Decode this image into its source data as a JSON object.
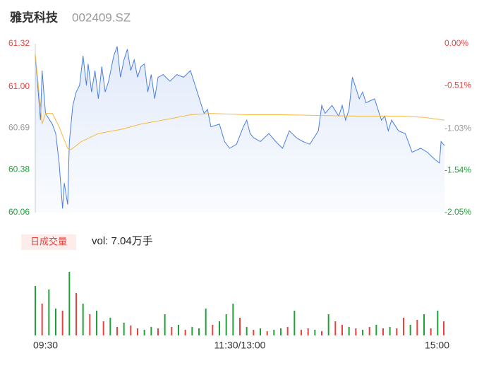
{
  "header": {
    "name": "雅克科技",
    "code": "002409.SZ"
  },
  "chart_data": [
    {
      "type": "line",
      "xlim": [
        0,
        240
      ],
      "ylim": [
        60.06,
        61.32
      ],
      "yticks": [
        61.32,
        {
          "value": 61,
          "label": "61.00"
        },
        60.69,
        60.38,
        60.06
      ],
      "y2lim": [
        -2.05,
        0
      ],
      "y2ticks": [
        {
          "value": 0,
          "label": "0.00%"
        },
        {
          "value": -0.51,
          "label": "-0.51%"
        },
        {
          "value": -1.03,
          "label": "-1.03%"
        },
        {
          "value": -1.54,
          "label": "-1.54%"
        },
        {
          "value": -2.05,
          "label": "-2.05%"
        }
      ],
      "up_color": "#e8413e",
      "flat_color": "#999999",
      "down_color": "#1fa339",
      "series": [
        {
          "color": "#4a7fe0",
          "x": [
            0,
            3,
            4,
            6,
            10,
            12,
            14,
            16,
            17,
            19,
            20,
            22,
            24,
            26,
            28,
            30,
            31,
            33,
            35,
            37,
            39,
            41,
            43,
            46,
            48,
            50,
            52,
            54,
            56,
            58,
            60,
            62,
            64,
            66,
            68,
            70,
            72,
            75,
            79,
            83,
            87,
            91,
            95,
            97,
            99,
            101,
            103,
            108,
            111,
            114,
            118,
            122,
            124,
            126,
            128,
            132,
            137,
            141,
            145,
            149,
            153,
            157,
            161,
            166,
            168,
            170,
            174,
            178,
            180,
            182,
            184,
            186,
            190,
            192,
            194,
            199,
            203,
            205,
            207,
            209,
            213,
            217,
            221,
            226,
            230,
            234,
            237,
            238,
            240
          ],
          "values": [
            61.24,
            60.75,
            61.12,
            60.8,
            60.72,
            60.65,
            60.43,
            60.09,
            60.28,
            60.12,
            60.59,
            60.86,
            60.96,
            61.01,
            61.23,
            61.01,
            61.17,
            60.96,
            61.12,
            60.91,
            61.15,
            60.96,
            61.04,
            61.23,
            61.3,
            61.07,
            61.2,
            61.28,
            61.12,
            61.2,
            61.07,
            61.15,
            61.17,
            60.96,
            61.09,
            60.91,
            61.07,
            61.09,
            61.04,
            61.09,
            61.07,
            61.12,
            60.96,
            60.88,
            60.8,
            60.83,
            60.7,
            60.72,
            60.59,
            60.54,
            60.57,
            60.7,
            60.75,
            60.65,
            60.62,
            60.59,
            60.65,
            60.59,
            60.54,
            60.67,
            60.62,
            60.59,
            60.57,
            60.67,
            60.86,
            60.8,
            60.86,
            60.78,
            60.86,
            60.75,
            60.83,
            61.07,
            60.91,
            60.96,
            60.88,
            60.91,
            60.75,
            60.78,
            60.67,
            60.75,
            60.67,
            60.65,
            60.51,
            60.54,
            60.51,
            60.46,
            60.43,
            60.59,
            60.56
          ]
        },
        {
          "color": "#f5b942",
          "x": [
            0,
            4,
            6,
            10,
            14,
            19,
            21,
            27,
            37,
            50,
            62,
            79,
            91,
            103,
            124,
            145,
            186,
            215,
            228,
            240
          ],
          "values": [
            61.24,
            60.72,
            60.8,
            60.8,
            60.7,
            60.54,
            60.53,
            60.59,
            60.65,
            60.68,
            60.72,
            60.76,
            60.79,
            60.8,
            60.79,
            60.79,
            60.78,
            60.78,
            60.77,
            60.75
          ]
        }
      ]
    },
    {
      "type": "bar",
      "legend_label": "日成交量",
      "volume_text": "vol: 7.04万手",
      "xlim": [
        0,
        240
      ],
      "xticks": [
        {
          "value": 0,
          "label": "09:30"
        },
        {
          "value": 120,
          "label": "11:30/13:00"
        },
        {
          "value": 240,
          "label": "15:00"
        }
      ],
      "ylim": [
        0,
        100
      ],
      "x": [
        0,
        4,
        8,
        12,
        16,
        20,
        24,
        28,
        32,
        36,
        40,
        44,
        48,
        52,
        56,
        60,
        64,
        68,
        72,
        76,
        80,
        84,
        88,
        92,
        96,
        100,
        104,
        108,
        112,
        116,
        120,
        124,
        128,
        132,
        136,
        140,
        144,
        148,
        152,
        156,
        160,
        164,
        168,
        172,
        176,
        180,
        184,
        188,
        192,
        196,
        200,
        204,
        208,
        212,
        216,
        220,
        224,
        228,
        232,
        236,
        240
      ],
      "values": [
        70,
        45,
        65,
        38,
        35,
        90,
        60,
        45,
        30,
        35,
        20,
        25,
        12,
        18,
        14,
        10,
        8,
        12,
        10,
        30,
        12,
        15,
        8,
        12,
        10,
        38,
        15,
        20,
        30,
        45,
        25,
        12,
        8,
        10,
        6,
        8,
        10,
        12,
        35,
        8,
        10,
        8,
        6,
        30,
        20,
        15,
        12,
        10,
        8,
        12,
        15,
        10,
        12,
        10,
        25,
        15,
        22,
        30,
        10,
        35,
        20
      ],
      "colors": [
        "#1fa339",
        "#e8413e",
        "#1fa339",
        "#1fa339",
        "#e8413e",
        "#1fa339",
        "#e8413e",
        "#1fa339",
        "#e8413e",
        "#1fa339",
        "#e8413e",
        "#1fa339",
        "#e8413e",
        "#1fa339",
        "#e8413e",
        "#e8413e",
        "#1fa339",
        "#1fa339",
        "#e8413e",
        "#1fa339",
        "#e8413e",
        "#1fa339",
        "#e8413e",
        "#1fa339",
        "#1fa339",
        "#1fa339",
        "#e8413e",
        "#1fa339",
        "#1fa339",
        "#1fa339",
        "#e8413e",
        "#1fa339",
        "#e8413e",
        "#1fa339",
        "#e8413e",
        "#1fa339",
        "#1fa339",
        "#e8413e",
        "#1fa339",
        "#e8413e",
        "#e8413e",
        "#1fa339",
        "#e8413e",
        "#1fa339",
        "#e8413e",
        "#e8413e",
        "#1fa339",
        "#e8413e",
        "#1fa339",
        "#e8413e",
        "#1fa339",
        "#e8413e",
        "#1fa339",
        "#e8413e",
        "#e8413e",
        "#1fa339",
        "#e8413e",
        "#1fa339",
        "#e8413e",
        "#1fa339",
        "#e8413e"
      ]
    }
  ]
}
